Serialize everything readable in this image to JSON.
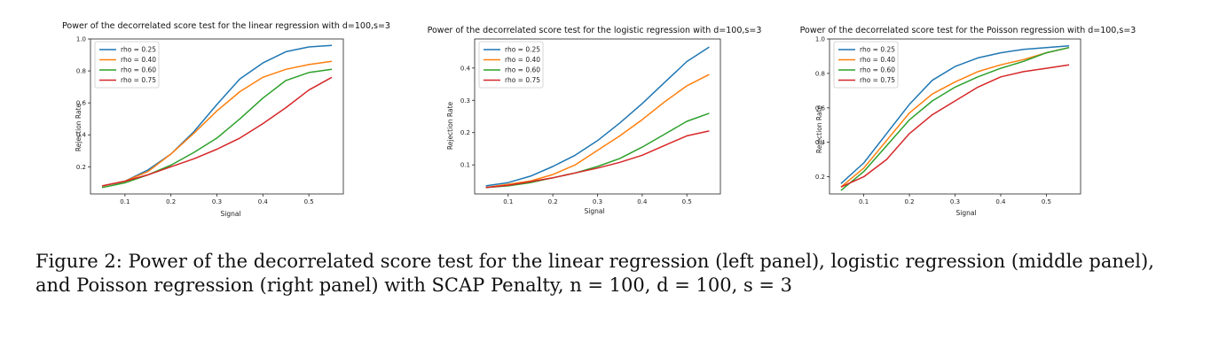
{
  "caption": "Figure 2: Power of the decorrelated score test for the linear regression (left panel), logistic regression (middle panel), and Poisson regression (right panel) with SCAP Penalty, n = 100, d = 100, s = 3",
  "colors": {
    "rho_025": "#1f77b4",
    "rho_040": "#ff7f0e",
    "rho_060": "#2ca02c",
    "rho_075": "#d62728"
  },
  "chart_data": [
    {
      "type": "line",
      "title": "Power of the decorrelated score test for the linear regression with d=100,s=3",
      "xlabel": "Signal",
      "ylabel": "Rejection Rate",
      "xlim": [
        0.025,
        0.575
      ],
      "ylim": [
        0.03,
        1.0
      ],
      "xticks": [
        "0.1",
        "0.2",
        "0.3",
        "0.4",
        "0.5"
      ],
      "yticks": [
        "0.2",
        "0.4",
        "0.6",
        "0.8",
        "1.0"
      ],
      "legend_position": "top-left",
      "grid": false,
      "x": [
        0.05,
        0.1,
        0.15,
        0.2,
        0.25,
        0.3,
        0.35,
        0.4,
        0.45,
        0.5,
        0.55
      ],
      "series": [
        {
          "name": "rho = 0.25",
          "color": "#1f77b4",
          "values": [
            0.08,
            0.11,
            0.18,
            0.28,
            0.42,
            0.59,
            0.75,
            0.85,
            0.92,
            0.95,
            0.96
          ]
        },
        {
          "name": "rho = 0.40",
          "color": "#ff7f0e",
          "values": [
            0.08,
            0.11,
            0.17,
            0.28,
            0.41,
            0.55,
            0.67,
            0.76,
            0.81,
            0.84,
            0.86
          ]
        },
        {
          "name": "rho = 0.60",
          "color": "#2ca02c",
          "values": [
            0.07,
            0.1,
            0.15,
            0.21,
            0.29,
            0.38,
            0.5,
            0.63,
            0.74,
            0.79,
            0.81
          ]
        },
        {
          "name": "rho = 0.75",
          "color": "#d62728",
          "values": [
            0.08,
            0.11,
            0.15,
            0.2,
            0.25,
            0.31,
            0.38,
            0.47,
            0.57,
            0.68,
            0.76
          ]
        }
      ]
    },
    {
      "type": "line",
      "title": "Power of the decorrelated score test for the logistic regression with d=100,s=3",
      "xlabel": "Signal",
      "ylabel": "Rejection Rate",
      "xlim": [
        0.025,
        0.575
      ],
      "ylim": [
        0.01,
        0.49
      ],
      "xticks": [
        "0.1",
        "0.2",
        "0.3",
        "0.4",
        "0.5"
      ],
      "yticks": [
        "0.1",
        "0.2",
        "0.3",
        "0.4"
      ],
      "legend_position": "top-left",
      "grid": false,
      "x": [
        0.05,
        0.1,
        0.15,
        0.2,
        0.25,
        0.3,
        0.35,
        0.4,
        0.45,
        0.5,
        0.55
      ],
      "series": [
        {
          "name": "rho = 0.25",
          "color": "#1f77b4",
          "values": [
            0.035,
            0.045,
            0.065,
            0.095,
            0.13,
            0.175,
            0.23,
            0.29,
            0.355,
            0.42,
            0.465
          ]
        },
        {
          "name": "rho = 0.40",
          "color": "#ff7f0e",
          "values": [
            0.03,
            0.04,
            0.05,
            0.07,
            0.1,
            0.145,
            0.19,
            0.24,
            0.295,
            0.345,
            0.38
          ]
        },
        {
          "name": "rho = 0.60",
          "color": "#2ca02c",
          "values": [
            0.03,
            0.035,
            0.045,
            0.06,
            0.075,
            0.095,
            0.12,
            0.155,
            0.195,
            0.235,
            0.26
          ]
        },
        {
          "name": "rho = 0.75",
          "color": "#d62728",
          "values": [
            0.03,
            0.037,
            0.048,
            0.06,
            0.075,
            0.09,
            0.108,
            0.13,
            0.16,
            0.19,
            0.205
          ]
        }
      ]
    },
    {
      "type": "line",
      "title": "Power of the decorrelated score test for the Poisson regression with d=100,s=3",
      "xlabel": "Signal",
      "ylabel": "Rejection Rate",
      "xlim": [
        0.025,
        0.575
      ],
      "ylim": [
        0.1,
        1.0
      ],
      "xticks": [
        "0.1",
        "0.2",
        "0.3",
        "0.4",
        "0.5"
      ],
      "yticks": [
        "0.2",
        "0.4",
        "0.6",
        "0.8",
        "1.0"
      ],
      "legend_position": "top-left",
      "grid": false,
      "x": [
        0.05,
        0.1,
        0.15,
        0.2,
        0.25,
        0.3,
        0.35,
        0.4,
        0.45,
        0.5,
        0.55
      ],
      "series": [
        {
          "name": "rho = 0.25",
          "color": "#1f77b4",
          "values": [
            0.16,
            0.28,
            0.45,
            0.62,
            0.76,
            0.84,
            0.89,
            0.92,
            0.94,
            0.95,
            0.96
          ]
        },
        {
          "name": "rho = 0.40",
          "color": "#ff7f0e",
          "values": [
            0.14,
            0.25,
            0.41,
            0.57,
            0.68,
            0.75,
            0.81,
            0.85,
            0.88,
            0.92,
            0.95
          ]
        },
        {
          "name": "rho = 0.60",
          "color": "#2ca02c",
          "values": [
            0.12,
            0.23,
            0.38,
            0.53,
            0.64,
            0.72,
            0.78,
            0.83,
            0.87,
            0.92,
            0.95
          ]
        },
        {
          "name": "rho = 0.75",
          "color": "#d62728",
          "values": [
            0.14,
            0.2,
            0.3,
            0.45,
            0.56,
            0.64,
            0.72,
            0.78,
            0.81,
            0.83,
            0.85
          ]
        }
      ]
    }
  ]
}
